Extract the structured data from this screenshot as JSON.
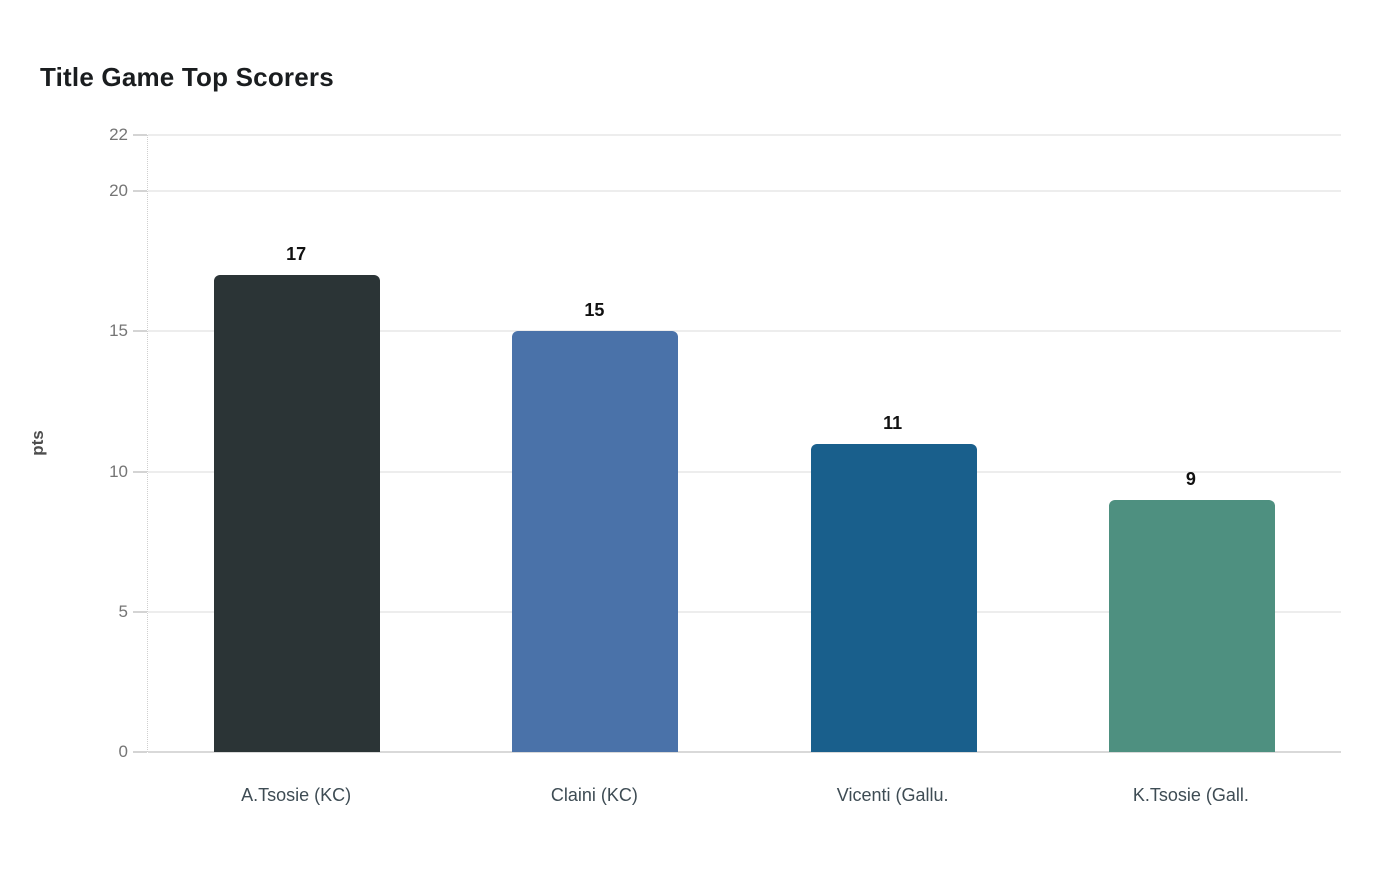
{
  "page": {
    "title": "Title Game Top Scorers"
  },
  "chart_data": {
    "type": "bar",
    "title": "Title Game Top Scorers",
    "xlabel": "",
    "ylabel": "pts",
    "categories": [
      "A.Tsosie (KC)",
      "Claini (KC)",
      "Vicenti (Gallu.",
      "K.Tsosie (Gall."
    ],
    "values": [
      17,
      15,
      11,
      9
    ],
    "value_labels": [
      "17",
      "15",
      "11",
      "9"
    ],
    "bar_colors": [
      "#2b3436",
      "#4a72a9",
      "#195f8c",
      "#4e9080"
    ],
    "yticks": [
      0,
      5,
      10,
      15,
      20,
      22
    ],
    "ylim": [
      0,
      22
    ],
    "grid": "horizontal",
    "legend_position": "none",
    "style_colors": {
      "background": "#ffffff",
      "gridline": "#ededed",
      "baseline": "#d9d9d9",
      "tick_label": "#757575",
      "axis_label": "#4d4d4d",
      "category_label": "#3e4c54",
      "value_label": "#111111",
      "title": "#1a1d1f"
    }
  }
}
